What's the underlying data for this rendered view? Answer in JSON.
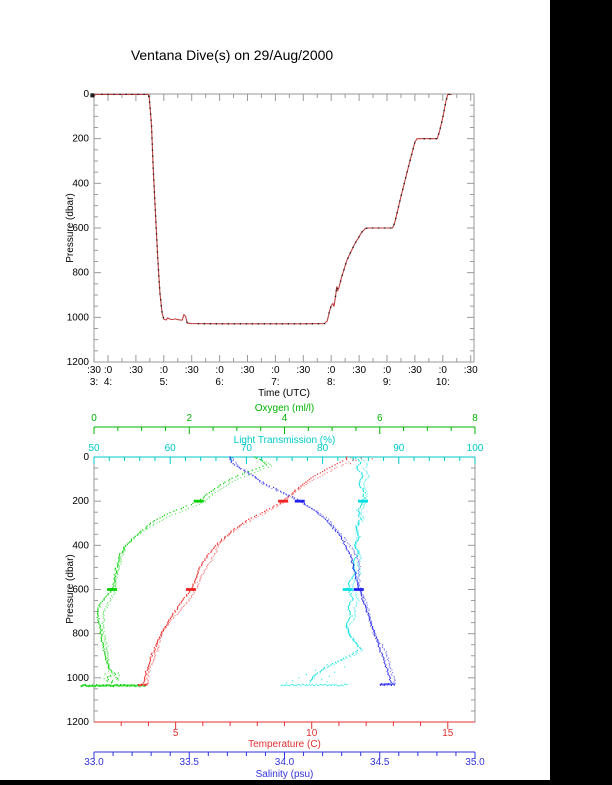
{
  "title": "Ventana Dive(s) on 29/Aug/2000",
  "frame_color": "#9a9a9a",
  "background": {
    "surface": "#ffffff",
    "window_bars": "#000000"
  },
  "chart_data": [
    {
      "type": "line",
      "title": "Ventana Dive(s) on 29/Aug/2000",
      "xlabel": "Time (UTC)",
      "ylabel": "Pressure (dbar)",
      "xlim_hours": [
        3.75,
        10.57
      ],
      "ylim": [
        1200,
        0
      ],
      "y_major_ticks": [
        0,
        200,
        400,
        600,
        800,
        1000,
        1200
      ],
      "y_minor_step": 50,
      "x_minor_step": 0.25,
      "x_major_ticks": [
        {
          "t": 3.75,
          "minute_label": ":30",
          "hour_label": "3:"
        },
        {
          "t": 4.0,
          "minute_label": ":0",
          "hour_label": "4:"
        },
        {
          "t": 4.5,
          "minute_label": ":30",
          "hour_label": ""
        },
        {
          "t": 5.0,
          "minute_label": ":0",
          "hour_label": "5:"
        },
        {
          "t": 5.5,
          "minute_label": ":30",
          "hour_label": ""
        },
        {
          "t": 6.0,
          "minute_label": ":0",
          "hour_label": "6:"
        },
        {
          "t": 6.5,
          "minute_label": ":30",
          "hour_label": ""
        },
        {
          "t": 7.0,
          "minute_label": ":0",
          "hour_label": "7:"
        },
        {
          "t": 7.5,
          "minute_label": ":30",
          "hour_label": ""
        },
        {
          "t": 8.0,
          "minute_label": ":0",
          "hour_label": "8:"
        },
        {
          "t": 8.5,
          "minute_label": ":30",
          "hour_label": ""
        },
        {
          "t": 9.0,
          "minute_label": ":0",
          "hour_label": "9:"
        },
        {
          "t": 9.5,
          "minute_label": ":30",
          "hour_label": ""
        },
        {
          "t": 10.0,
          "minute_label": ":0",
          "hour_label": "10:"
        },
        {
          "t": 10.5,
          "minute_label": ":30",
          "hour_label": ""
        }
      ],
      "series": [
        {
          "name": "dive-depth-profile",
          "line_color": "#c04040",
          "dot_color": "#1c1c1c",
          "points": [
            [
              3.72,
              6
            ],
            [
              3.74,
              14
            ],
            [
              3.76,
              6
            ],
            [
              3.78,
              2
            ],
            [
              4.0,
              2
            ],
            [
              4.3,
              2
            ],
            [
              4.6,
              2
            ],
            [
              4.72,
              2
            ],
            [
              4.74,
              20
            ],
            [
              4.78,
              140
            ],
            [
              4.81,
              330
            ],
            [
              4.85,
              530
            ],
            [
              4.89,
              730
            ],
            [
              4.93,
              890
            ],
            [
              4.97,
              980
            ],
            [
              5.0,
              1008
            ],
            [
              5.04,
              1012
            ],
            [
              5.07,
              1003
            ],
            [
              5.1,
              1007
            ],
            [
              5.15,
              1010
            ],
            [
              5.2,
              1007
            ],
            [
              5.27,
              1011
            ],
            [
              5.33,
              1013
            ],
            [
              5.36,
              988
            ],
            [
              5.39,
              996
            ],
            [
              5.42,
              1026
            ],
            [
              5.5,
              1028
            ],
            [
              6.0,
              1029
            ],
            [
              6.5,
              1029
            ],
            [
              7.0,
              1029
            ],
            [
              7.5,
              1029
            ],
            [
              7.88,
              1028
            ],
            [
              7.93,
              1015
            ],
            [
              7.97,
              972
            ],
            [
              8.0,
              948
            ],
            [
              8.03,
              938
            ],
            [
              8.05,
              952
            ],
            [
              8.08,
              900
            ],
            [
              8.1,
              862
            ],
            [
              8.12,
              880
            ],
            [
              8.14,
              866
            ],
            [
              8.18,
              826
            ],
            [
              8.28,
              745
            ],
            [
              8.42,
              672
            ],
            [
              8.55,
              618
            ],
            [
              8.62,
              601
            ],
            [
              8.7,
              600
            ],
            [
              8.9,
              600
            ],
            [
              9.1,
              600
            ],
            [
              9.14,
              575
            ],
            [
              9.25,
              460
            ],
            [
              9.38,
              330
            ],
            [
              9.5,
              215
            ],
            [
              9.54,
              200
            ],
            [
              9.7,
              200
            ],
            [
              9.9,
              200
            ],
            [
              9.94,
              168
            ],
            [
              10.0,
              105
            ],
            [
              10.06,
              28
            ],
            [
              10.09,
              2
            ],
            [
              10.16,
              2
            ]
          ]
        }
      ]
    },
    {
      "type": "scatter",
      "ylabel": "Pressure (dbar)",
      "ylim": [
        1200,
        0
      ],
      "y_major_ticks": [
        0,
        200,
        400,
        600,
        800,
        1000,
        1200
      ],
      "y_minor_step": 50,
      "x_axes": [
        {
          "id": "oxygen",
          "label": "Oxygen (ml/l)",
          "color": "#00b400",
          "range": [
            0,
            8
          ],
          "major_values": [
            0,
            2,
            4,
            6,
            8
          ],
          "major_labels": [
            "0",
            "2",
            "4",
            "6",
            "8"
          ],
          "minor_step": 0.5,
          "position": "floating-top"
        },
        {
          "id": "light",
          "label": "Light Transmission (%)",
          "color": "#00c8c8",
          "range": [
            50,
            100
          ],
          "major_values": [
            50,
            60,
            70,
            80,
            90,
            100
          ],
          "major_labels": [
            "50",
            "60",
            "70",
            "80",
            "90",
            "100"
          ],
          "minor_step": 2,
          "position": "top-frame"
        },
        {
          "id": "temperature",
          "label": "Temperature (C)",
          "color": "#e03030",
          "range": [
            2,
            16
          ],
          "major_values": [
            5,
            10,
            15
          ],
          "major_labels": [
            "5",
            "10",
            "15"
          ],
          "minor_step": 1,
          "position": "bottom-frame"
        },
        {
          "id": "salinity",
          "label": "Salinity (psu)",
          "color": "#3232dc",
          "range": [
            33.0,
            35.0
          ],
          "major_values": [
            33.0,
            33.5,
            34.0,
            34.5,
            35.0
          ],
          "major_labels": [
            "33.0",
            "33.5",
            "34.0",
            "34.5",
            "35.0"
          ],
          "minor_step": 0.1,
          "position": "floating-bottom"
        }
      ],
      "profiles": [
        {
          "id": "oxygen",
          "axis": "oxygen",
          "color": "#00d000",
          "stop_marker_pressures": [
            200,
            600
          ],
          "points": [
            [
              0,
              3.35
            ],
            [
              15,
              3.5
            ],
            [
              35,
              3.6
            ],
            [
              60,
              3.3
            ],
            [
              90,
              2.95
            ],
            [
              120,
              2.7
            ],
            [
              160,
              2.42
            ],
            [
              200,
              2.2
            ],
            [
              230,
              1.85
            ],
            [
              260,
              1.5
            ],
            [
              290,
              1.25
            ],
            [
              320,
              1.08
            ],
            [
              360,
              0.85
            ],
            [
              400,
              0.65
            ],
            [
              450,
              0.52
            ],
            [
              500,
              0.46
            ],
            [
              550,
              0.42
            ],
            [
              600,
              0.38
            ],
            [
              630,
              0.25
            ],
            [
              660,
              0.14
            ],
            [
              690,
              0.07
            ],
            [
              720,
              0.07
            ],
            [
              760,
              0.1
            ],
            [
              800,
              0.13
            ],
            [
              850,
              0.18
            ],
            [
              900,
              0.23
            ],
            [
              935,
              0.27
            ],
            [
              965,
              0.33
            ],
            [
              985,
              0.45
            ],
            [
              995,
              0.25
            ],
            [
              1002,
              0.5
            ],
            [
              1008,
              0.28
            ],
            [
              1015,
              0.4
            ],
            [
              1022,
              0.34
            ]
          ],
          "extra_scatter": [
            [
              978,
              0.5
            ],
            [
              983,
              0.22
            ],
            [
              988,
              0.52
            ],
            [
              993,
              0.3
            ],
            [
              998,
              0.45
            ],
            [
              1004,
              0.2
            ],
            [
              1010,
              0.5
            ],
            [
              1016,
              0.27
            ]
          ],
          "bottom_spread": {
            "pressure": 1035,
            "min": -0.28,
            "max": 1.1,
            "bold": true
          }
        },
        {
          "id": "light",
          "axis": "light",
          "color": "#00e0e0",
          "stop_marker_pressures": [
            200,
            600
          ],
          "points": [
            [
              0,
              84.2
            ],
            [
              25,
              85.0
            ],
            [
              50,
              84.4
            ],
            [
              80,
              85.2
            ],
            [
              120,
              84.7
            ],
            [
              160,
              85.4
            ],
            [
              200,
              85.3
            ],
            [
              240,
              84.5
            ],
            [
              280,
              84.9
            ],
            [
              320,
              84.3
            ],
            [
              360,
              84.7
            ],
            [
              400,
              84.2
            ],
            [
              440,
              84.6
            ],
            [
              480,
              83.9
            ],
            [
              520,
              84.3
            ],
            [
              560,
              83.5
            ],
            [
              600,
              83.3
            ],
            [
              640,
              83.9
            ],
            [
              680,
              83.2
            ],
            [
              720,
              83.7
            ],
            [
              760,
              83.0
            ],
            [
              800,
              83.4
            ],
            [
              840,
              84.2
            ],
            [
              870,
              84.9
            ],
            [
              900,
              83.4
            ],
            [
              930,
              81.6
            ],
            [
              955,
              80.2
            ],
            [
              980,
              79.2
            ],
            [
              1000,
              78.6
            ],
            [
              1015,
              78.2
            ]
          ],
          "extra_scatter": [
            [
              920,
              82.5
            ],
            [
              940,
              80.5
            ],
            [
              950,
              82.8
            ],
            [
              965,
              79.0
            ],
            [
              975,
              81.5
            ],
            [
              985,
              77.8
            ],
            [
              992,
              80.8
            ],
            [
              1000,
              76.8
            ],
            [
              1008,
              79.8
            ],
            [
              1014,
              76.0
            ],
            [
              1018,
              80.5
            ],
            [
              1022,
              75.2
            ]
          ],
          "bottom_spread": {
            "pressure": 1032,
            "min": 74.5,
            "max": 83.2,
            "bold": false
          }
        },
        {
          "id": "temperature",
          "axis": "temperature",
          "color": "#ee2222",
          "stop_marker_pressures": [
            200,
            600
          ],
          "points": [
            [
              0,
              11.25
            ],
            [
              10,
              11.3
            ],
            [
              25,
              11.0
            ],
            [
              50,
              10.6
            ],
            [
              80,
              10.15
            ],
            [
              120,
              9.7
            ],
            [
              160,
              9.3
            ],
            [
              200,
              8.95
            ],
            [
              240,
              8.35
            ],
            [
              280,
              7.7
            ],
            [
              320,
              7.2
            ],
            [
              360,
              6.8
            ],
            [
              400,
              6.45
            ],
            [
              450,
              6.12
            ],
            [
              500,
              5.88
            ],
            [
              550,
              5.72
            ],
            [
              600,
              5.56
            ],
            [
              650,
              5.25
            ],
            [
              700,
              4.95
            ],
            [
              750,
              4.7
            ],
            [
              800,
              4.47
            ],
            [
              850,
              4.27
            ],
            [
              900,
              4.1
            ],
            [
              950,
              3.96
            ],
            [
              1000,
              3.84
            ],
            [
              1025,
              3.79
            ]
          ],
          "extra_scatter": [
            [
              5,
              11.8
            ],
            [
              8,
              12.2
            ],
            [
              15,
              11.6
            ],
            [
              30,
              11.4
            ]
          ],
          "bottom_spread": {
            "pressure": 1031,
            "min": 3.62,
            "max": 3.97,
            "bold": true
          }
        },
        {
          "id": "salinity",
          "axis": "salinity",
          "color": "#2222ee",
          "stop_marker_pressures": [
            200,
            600
          ],
          "points": [
            [
              0,
              33.71
            ],
            [
              25,
              33.72
            ],
            [
              50,
              33.76
            ],
            [
              80,
              33.82
            ],
            [
              120,
              33.89
            ],
            [
              160,
              33.99
            ],
            [
              200,
              34.08
            ],
            [
              240,
              34.15
            ],
            [
              280,
              34.21
            ],
            [
              320,
              34.25
            ],
            [
              360,
              34.29
            ],
            [
              400,
              34.315
            ],
            [
              450,
              34.345
            ],
            [
              500,
              34.36
            ],
            [
              550,
              34.375
            ],
            [
              600,
              34.39
            ],
            [
              650,
              34.41
            ],
            [
              700,
              34.43
            ],
            [
              750,
              34.45
            ],
            [
              800,
              34.47
            ],
            [
              850,
              34.49
            ],
            [
              900,
              34.51
            ],
            [
              950,
              34.53
            ],
            [
              1000,
              34.55
            ],
            [
              1025,
              34.555
            ]
          ],
          "extra_scatter": [],
          "bottom_spread": {
            "pressure": 1030,
            "min": 34.5,
            "max": 34.575,
            "bold": true
          }
        }
      ]
    }
  ]
}
